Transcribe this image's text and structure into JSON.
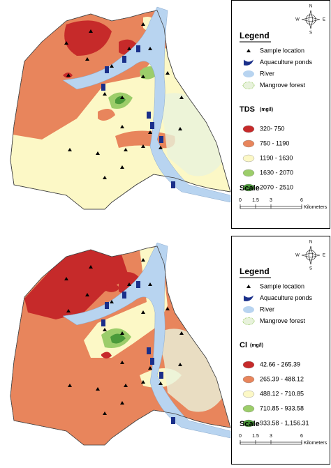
{
  "panels": [
    {
      "compass": {
        "n": "N",
        "s": "S",
        "e": "E",
        "w": "W"
      },
      "legend": {
        "title": "Legend",
        "items": [
          "Sample location",
          "Aquaculture ponds",
          "River",
          "Mangrove forest"
        ]
      },
      "variable": {
        "name": "TDS",
        "unit": "(mg/l)",
        "classes": [
          {
            "label": "320- 750",
            "color": "#c62a2a"
          },
          {
            "label": "750 - 1190",
            "color": "#e8855c"
          },
          {
            "label": "1190 - 1630",
            "color": "#fcf8c6"
          },
          {
            "label": "1630 - 2070",
            "color": "#9ccd6a"
          },
          {
            "label": "2070 - 2510",
            "color": "#4b9a3a"
          }
        ]
      },
      "scale": {
        "title": "Scale",
        "ticks": [
          0,
          1.5,
          3,
          6
        ],
        "unit": "Kilometers"
      }
    },
    {
      "compass": {
        "n": "N",
        "s": "S",
        "e": "E",
        "w": "W"
      },
      "legend": {
        "title": "Legend",
        "items": [
          "Sample location",
          "Aquaculture ponds",
          "River",
          "Mangrove forest"
        ]
      },
      "variable": {
        "name": "Cl",
        "unit": "(mg/l)",
        "classes": [
          {
            "label": "42.66 - 265.39",
            "color": "#c62a2a"
          },
          {
            "label": "265.39 - 488.12",
            "color": "#e8855c"
          },
          {
            "label": "488.12 - 710.85",
            "color": "#fcf8c6"
          },
          {
            "label": "710.85 - 933.58",
            "color": "#9ccd6a"
          },
          {
            "label": "933.58 - 1,156.31",
            "color": "#4b9a3a"
          }
        ]
      },
      "scale": {
        "title": "Scale",
        "ticks": [
          0,
          1.5,
          3,
          6
        ],
        "unit": "Kilometers"
      }
    }
  ]
}
